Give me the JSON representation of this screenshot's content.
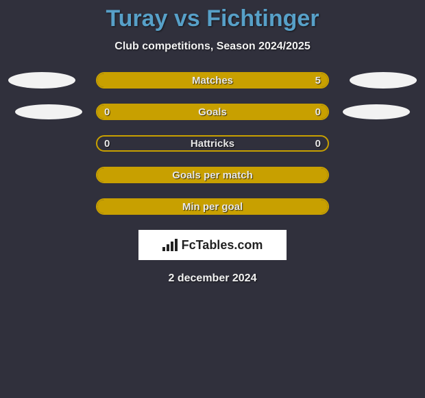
{
  "title": "Turay vs Fichtinger",
  "subtitle": "Club competitions, Season 2024/2025",
  "date": "2 december 2024",
  "logo_text": "FcTables.com",
  "background_color": "#30303c",
  "title_color": "#57a0c8",
  "accent_color": "#c8a000",
  "ellipse_color": "#f2f2f2",
  "rows": [
    {
      "label": "Matches",
      "left": "",
      "right": "5",
      "fill_pct": 100,
      "show_left_ellipse": true,
      "show_right_ellipse": true,
      "ellipse_size": "big"
    },
    {
      "label": "Goals",
      "left": "0",
      "right": "0",
      "fill_pct": 100,
      "show_left_ellipse": true,
      "show_right_ellipse": true,
      "ellipse_size": "small"
    },
    {
      "label": "Hattricks",
      "left": "0",
      "right": "0",
      "fill_pct": 0,
      "show_left_ellipse": false,
      "show_right_ellipse": false,
      "ellipse_size": ""
    },
    {
      "label": "Goals per match",
      "left": "",
      "right": "",
      "fill_pct": 100,
      "show_left_ellipse": false,
      "show_right_ellipse": false,
      "ellipse_size": ""
    },
    {
      "label": "Min per goal",
      "left": "",
      "right": "",
      "fill_pct": 100,
      "show_left_ellipse": false,
      "show_right_ellipse": false,
      "ellipse_size": ""
    }
  ]
}
